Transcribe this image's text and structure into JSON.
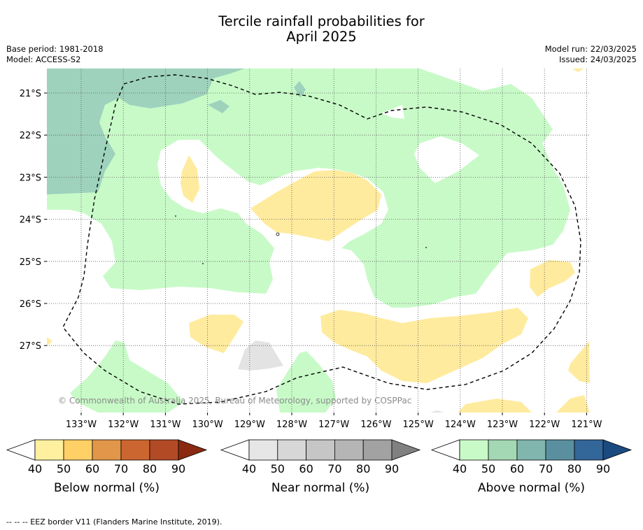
{
  "title_line1": "Tercile rainfall probabilities for",
  "title_line2": "April 2025",
  "base_period": "Base period: 1981-2018",
  "model": "Model: ACCESS-S2",
  "model_run": "Model run: 22/03/2025",
  "issued": "Issued: 24/03/2025",
  "copyright": "© Commonwealth of Australia 2025, Bureau of Meteorology, supported by COSPPac",
  "footnote": "--  --  -- EEZ border V11 (Flanders Marine Institute, 2019).",
  "map": {
    "lat_labels": [
      "21°S",
      "22°S",
      "23°S",
      "24°S",
      "25°S",
      "26°S",
      "27°S"
    ],
    "lon_labels": [
      "133°W",
      "132°W",
      "131°W",
      "130°W",
      "129°W",
      "128°W",
      "127°W",
      "126°W",
      "125°W",
      "124°W",
      "123°W",
      "122°W",
      "121°W"
    ],
    "colors": {
      "above_40": "#c8fac8",
      "above_50": "#9ed2bd",
      "below_40": "#ffeb9e",
      "near_40": "#e3e3e3",
      "land": "#ffffff"
    }
  },
  "colorbars": [
    {
      "title": "Below normal (%)",
      "ticks": [
        "40",
        "50",
        "60",
        "70",
        "80",
        "90"
      ],
      "colors": [
        "#ffffff",
        "#fff0a0",
        "#ffd066",
        "#e2964a",
        "#cc6630",
        "#b24a26",
        "#8a2a10"
      ]
    },
    {
      "title": "Near normal (%)",
      "ticks": [
        "40",
        "50",
        "60",
        "70",
        "80",
        "90"
      ],
      "colors": [
        "#ffffff",
        "#e6e6e6",
        "#d7d7d7",
        "#c6c6c6",
        "#b5b5b5",
        "#a2a2a2",
        "#808080"
      ]
    },
    {
      "title": "Above normal (%)",
      "ticks": [
        "40",
        "50",
        "60",
        "70",
        "80",
        "90"
      ],
      "colors": [
        "#ffffff",
        "#c8fac8",
        "#a4d8b4",
        "#80b6ae",
        "#5a8f9f",
        "#336699",
        "#1a4a80"
      ]
    }
  ]
}
